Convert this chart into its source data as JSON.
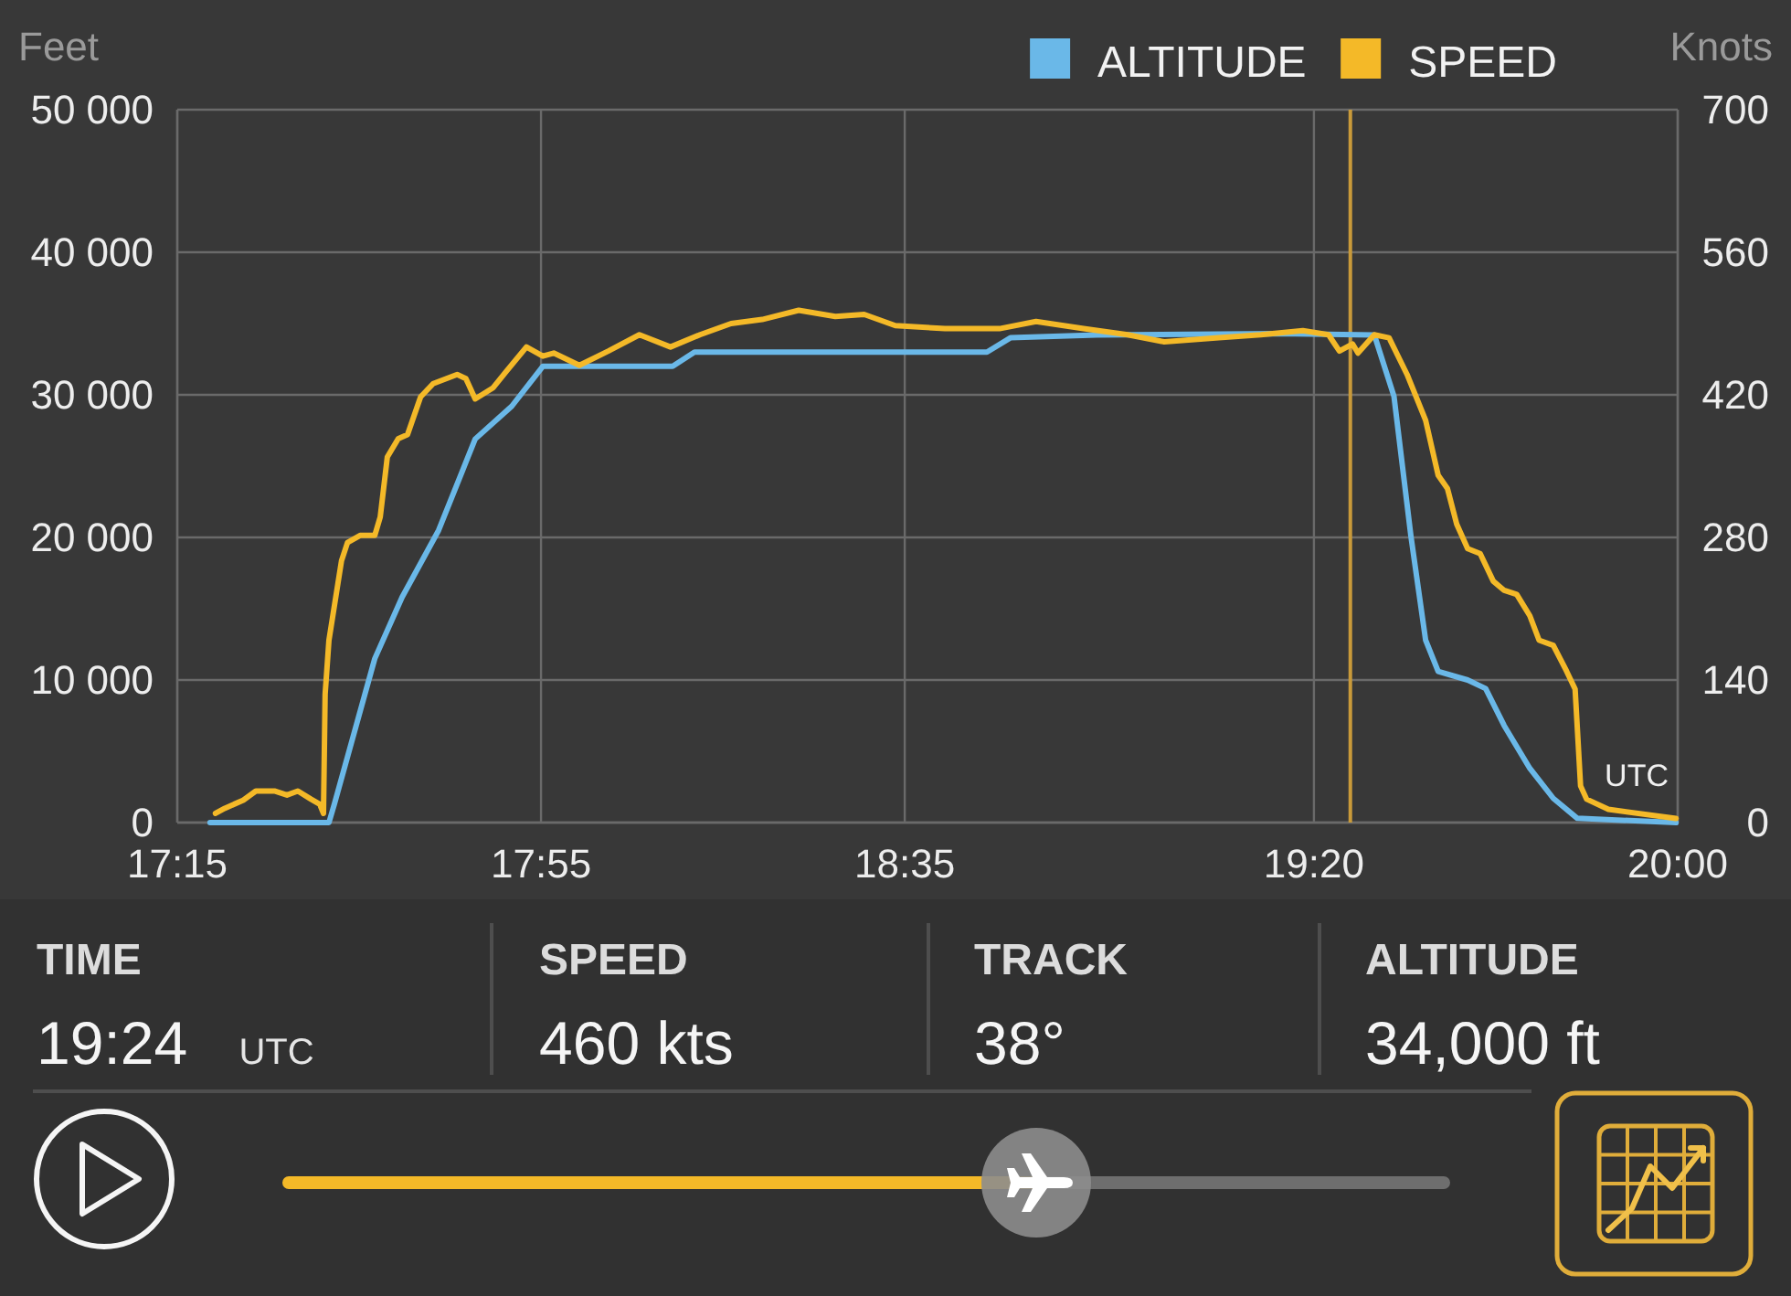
{
  "chart_data": {
    "type": "line",
    "ylabel": "Feet",
    "y2label": "Knots",
    "xlim": [
      17.25,
      20
    ],
    "xticks": [
      {
        "value": 17.25,
        "label": "17:15"
      },
      {
        "value": 17.9167,
        "label": "17:55"
      },
      {
        "value": 18.5833,
        "label": "18:35"
      },
      {
        "value": 19.3333,
        "label": "19:20"
      },
      {
        "value": 20,
        "label": "20:00"
      }
    ],
    "ylim": [
      0,
      50000
    ],
    "yticks": [
      0,
      {
        "value": 10000,
        "label": "10 000"
      },
      {
        "value": 20000,
        "label": "20 000"
      },
      {
        "value": 30000,
        "label": "30 000"
      },
      {
        "value": 40000,
        "label": "40 000"
      },
      {
        "value": 50000,
        "label": "50 000"
      }
    ],
    "y2lim": [
      0,
      700
    ],
    "y2ticks": [
      0,
      140,
      280,
      420,
      560,
      700
    ],
    "grid": true,
    "legend": "top right",
    "series": [
      {
        "name": "ALTITUDE",
        "color": "#6ab8e8",
        "x": [
          17.31,
          17.528,
          17.538,
          17.612,
          17.662,
          17.729,
          17.796,
          17.863,
          17.92,
          18.158,
          18.198,
          18.734,
          18.777,
          18.935,
          19.27,
          19.444,
          19.48,
          19.511,
          19.538,
          19.561,
          19.615,
          19.648,
          19.682,
          19.729,
          19.772,
          19.816,
          19.997
        ],
        "values": [
          0,
          0,
          1300,
          11500,
          15800,
          20500,
          26900,
          29200,
          32000,
          32000,
          33000,
          33000,
          34000,
          34200,
          34300,
          34200,
          29900,
          20100,
          12800,
          10600,
          10000,
          9400,
          6800,
          3800,
          1700,
          300,
          0
        ]
      },
      {
        "name": "SPEED",
        "color": "#f4b928",
        "axis": "y2",
        "x": [
          17.32,
          17.337,
          17.371,
          17.394,
          17.428,
          17.451,
          17.471,
          17.495,
          17.511,
          17.518,
          17.521,
          17.528,
          17.551,
          17.562,
          17.585,
          17.612,
          17.622,
          17.635,
          17.655,
          17.672,
          17.696,
          17.719,
          17.763,
          17.779,
          17.796,
          17.829,
          17.853,
          17.89,
          17.92,
          17.94,
          17.987,
          18.04,
          18.097,
          18.154,
          18.208,
          18.265,
          18.322,
          18.389,
          18.456,
          18.509,
          18.566,
          18.657,
          18.757,
          18.824,
          18.911,
          18.992,
          19.059,
          19.159,
          19.236,
          19.313,
          19.36,
          19.38,
          19.404,
          19.414,
          19.444,
          19.471,
          19.504,
          19.538,
          19.561,
          19.578,
          19.595,
          19.615,
          19.638,
          19.662,
          19.682,
          19.705,
          19.729,
          19.746,
          19.772,
          19.796,
          19.812,
          19.822,
          19.833,
          19.873,
          19.997
        ],
        "values": [
          9,
          14,
          22,
          31,
          31,
          27,
          31,
          23,
          18,
          9,
          126,
          179,
          257,
          275,
          282,
          282,
          300,
          359,
          377,
          381,
          418,
          431,
          440,
          436,
          416,
          427,
          443,
          467,
          458,
          461,
          449,
          463,
          479,
          467,
          479,
          490,
          494,
          503,
          497,
          499,
          488,
          485,
          485,
          492,
          485,
          479,
          472,
          476,
          479,
          483,
          479,
          463,
          470,
          461,
          479,
          476,
          440,
          395,
          341,
          328,
          293,
          269,
          264,
          237,
          228,
          224,
          203,
          179,
          174,
          149,
          131,
          36,
          23,
          13,
          4
        ]
      }
    ],
    "ref_lines": [
      {
        "axis": "x",
        "value": 19.4,
        "color": "#c99a3a"
      }
    ],
    "annotations": [
      "UTC",
      "TIME",
      "19:24",
      "UTC",
      "SPEED",
      "460 kts",
      "TRACK",
      "38°",
      "ALTITUDE",
      "34,000 ft"
    ]
  }
}
